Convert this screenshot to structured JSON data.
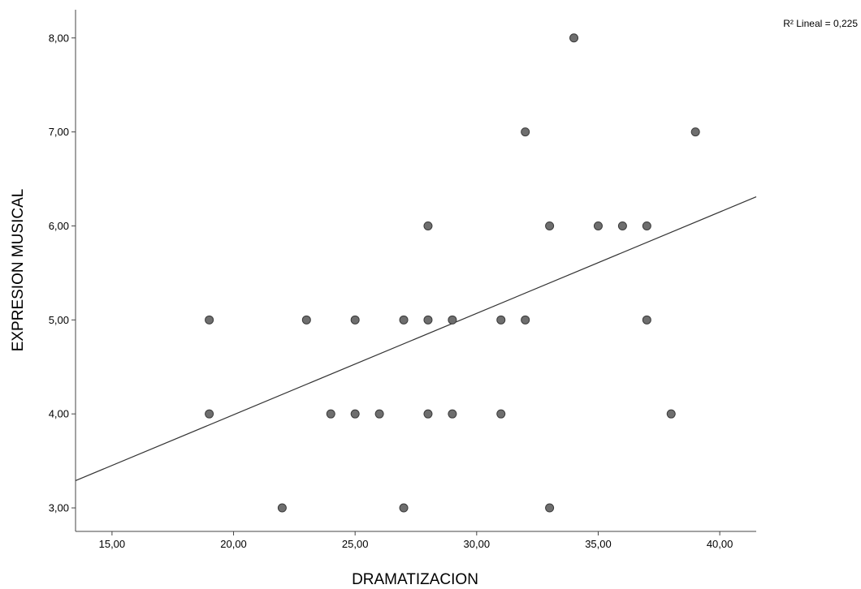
{
  "chart_data": {
    "type": "scatter",
    "xlabel": "DRAMATIZACION",
    "ylabel": "EXPRESION MUSICAL",
    "xlim": [
      13.5,
      41.5
    ],
    "ylim": [
      2.75,
      8.3
    ],
    "x_ticks": [
      15,
      20,
      25,
      30,
      35,
      40
    ],
    "y_ticks": [
      3,
      4,
      5,
      6,
      7,
      8
    ],
    "x_tick_labels": [
      "15,00",
      "20,00",
      "25,00",
      "30,00",
      "35,00",
      "40,00"
    ],
    "y_tick_labels": [
      "3,00",
      "4,00",
      "5,00",
      "6,00",
      "7,00",
      "8,00"
    ],
    "annotation": "R² Lineal = 0,225",
    "grid": false,
    "point_color": "#6e6e6e",
    "line_color": "#333333",
    "fit_line": {
      "x": [
        13.5,
        41.5
      ],
      "y": [
        3.29,
        6.31
      ]
    },
    "points": {
      "x": [
        19,
        19,
        22,
        23,
        24,
        25,
        25,
        26,
        27,
        27,
        28,
        28,
        28,
        29,
        29,
        31,
        31,
        32,
        32,
        33,
        33,
        34,
        35,
        36,
        37,
        37,
        38,
        39
      ],
      "y": [
        5,
        4,
        3,
        5,
        4,
        5,
        4,
        4,
        5,
        3,
        6,
        5,
        4,
        5,
        4,
        5,
        4,
        7,
        5,
        6,
        3,
        8,
        6,
        6,
        6,
        5,
        4,
        7
      ]
    }
  }
}
